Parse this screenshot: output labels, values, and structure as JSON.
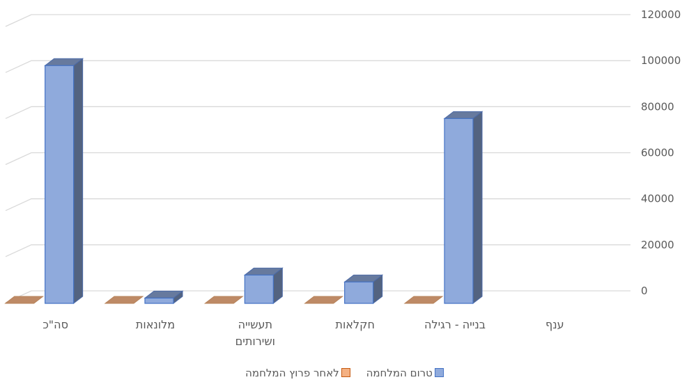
{
  "chart_data": {
    "type": "bar",
    "categories": [
      "ענף",
      "בנייה - רגילה",
      "חקלאות",
      "תעשייה ושירותים",
      "מלונאות",
      "סה\"כ"
    ],
    "category_lines": [
      [
        "ענף"
      ],
      [
        "בנייה - רגילה"
      ],
      [
        "חקלאות"
      ],
      [
        "תעשייה",
        "ושירותים"
      ],
      [
        "מלונאות"
      ],
      [
        "סה\"כ"
      ]
    ],
    "series": [
      {
        "name": "טרום המלחמה",
        "values": [
          null,
          80000,
          9000,
          12000,
          2000,
          103000
        ],
        "color": "#8faadc"
      },
      {
        "name": "לאחר פרוץ המלחמה",
        "values": [
          null,
          0,
          0,
          0,
          0,
          0
        ],
        "color": "#f4b183"
      }
    ],
    "yticks": [
      0,
      20000,
      40000,
      60000,
      80000,
      100000,
      120000
    ],
    "ylim": [
      0,
      120000
    ],
    "y_axis_side": "right",
    "grid": true,
    "legend_position": "bottom",
    "projection": "3d"
  }
}
